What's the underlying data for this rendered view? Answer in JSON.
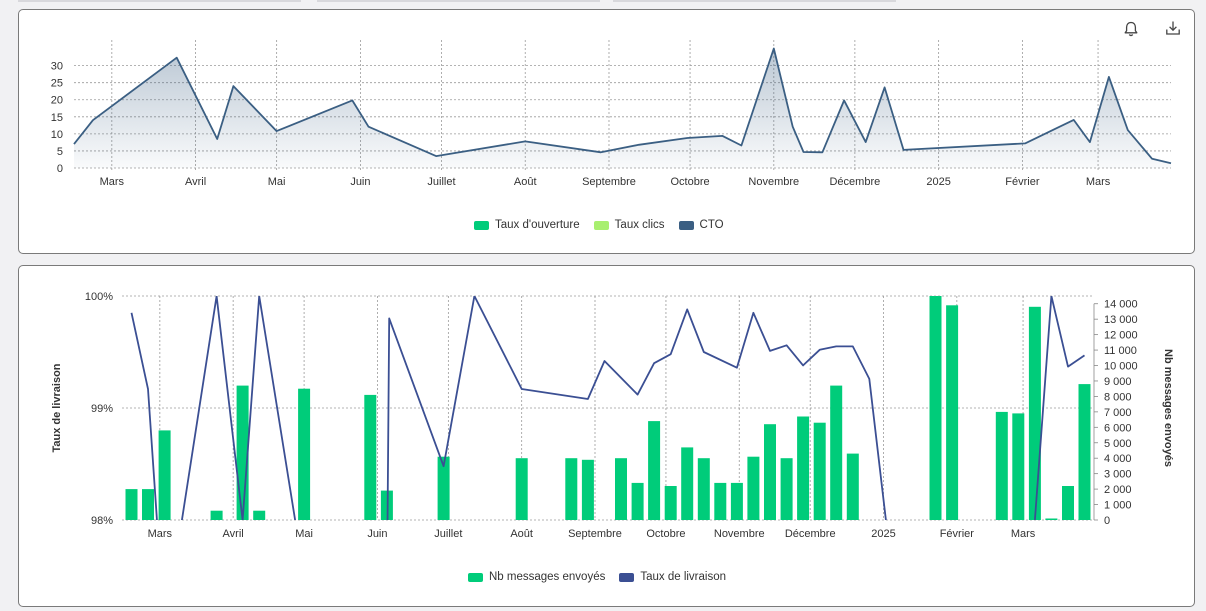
{
  "colors": {
    "open_rate": "#00cc7a",
    "click_rate": "#a8ef6f",
    "cto": "#3b5f83",
    "sent": "#00cc7a",
    "delivery": "#3b4f93",
    "grid": "#9a9a9a"
  },
  "icons": {
    "bell": "bell-icon",
    "download": "download-icon"
  },
  "chart_data": [
    {
      "type": "area",
      "title": "",
      "xlabel": "",
      "ylabel": "",
      "x_tick_labels": [
        "Mars",
        "Avril",
        "Mai",
        "Juin",
        "Juillet",
        "Août",
        "Septembre",
        "Octobre",
        "Novembre",
        "Décembre",
        "2025",
        "Février",
        "Mars"
      ],
      "y_tick_labels": [
        "0",
        "5",
        "10",
        "15",
        "20",
        "25",
        "30"
      ],
      "ylim": [
        0,
        37.5
      ],
      "grid": true,
      "legend_position": "bottom",
      "legend": [
        "Taux d'ouverture",
        "Taux clics",
        "CTO"
      ],
      "series": [
        {
          "name": "CTO",
          "points": [
            [
              "2024-02-16",
              7
            ],
            [
              "2024-02-23",
              14
            ],
            [
              "2024-03-25",
              32.3
            ],
            [
              "2024-04-09",
              8.5
            ],
            [
              "2024-04-15",
              24
            ],
            [
              "2024-05-01",
              10.8
            ],
            [
              "2024-05-29",
              19.8
            ],
            [
              "2024-06-04",
              12.1
            ],
            [
              "2024-06-29",
              3.5
            ],
            [
              "2024-08-01",
              7.8
            ],
            [
              "2024-08-29",
              4.6
            ],
            [
              "2024-09-12",
              6.8
            ],
            [
              "2024-09-30",
              8.8
            ],
            [
              "2024-10-13",
              9.4
            ],
            [
              "2024-10-20",
              6.6
            ],
            [
              "2024-11-01",
              35
            ],
            [
              "2024-11-08",
              12.1
            ],
            [
              "2024-11-12",
              4.7
            ],
            [
              "2024-11-19",
              4.6
            ],
            [
              "2024-11-27",
              19.8
            ],
            [
              "2024-12-05",
              7.6
            ],
            [
              "2024-12-12",
              23.6
            ],
            [
              "2024-12-19",
              5.3
            ],
            [
              "2025-02-02",
              7.2
            ],
            [
              "2025-02-20",
              14.1
            ],
            [
              "2025-02-26",
              7.6
            ],
            [
              "2025-03-05",
              26.7
            ],
            [
              "2025-03-12",
              11.1
            ],
            [
              "2025-03-21",
              2.7
            ],
            [
              "2025-03-28",
              1.4
            ]
          ]
        }
      ]
    },
    {
      "type": "bar",
      "title": "",
      "xlabel": "",
      "ylabel_left": "Taux de livraison",
      "ylabel_right": "Nb messages envoyés",
      "x_tick_labels": [
        "Mars",
        "Avril",
        "Mai",
        "Juin",
        "Juillet",
        "Août",
        "Septembre",
        "Octobre",
        "Novembre",
        "Décembre",
        "2025",
        "Février",
        "Mars"
      ],
      "y_left_tick_labels": [
        "98%",
        "99%",
        "100%"
      ],
      "y_left_lim": [
        98,
        100
      ],
      "y_right_tick_labels": [
        "0",
        "1 000",
        "2 000",
        "3 000",
        "4 000",
        "5 000",
        "6 000",
        "7 000",
        "8 000",
        "9 000",
        "10 000",
        "11 000",
        "12 000",
        "13 000",
        "14 000"
      ],
      "y_right_lim": [
        0,
        14500
      ],
      "grid": true,
      "legend_position": "bottom",
      "legend": [
        "Nb messages envoyés",
        "Taux de livraison"
      ],
      "series": [
        {
          "name": "Nb messages envoyés",
          "points": [
            [
              "2024-02-18",
              2000
            ],
            [
              "2024-02-25",
              2000
            ],
            [
              "2024-03-03",
              5800
            ],
            [
              "2024-03-25",
              600
            ],
            [
              "2024-04-05",
              8700
            ],
            [
              "2024-04-12",
              600
            ],
            [
              "2024-05-01",
              8500
            ],
            [
              "2024-05-29",
              8100
            ],
            [
              "2024-06-05",
              1900
            ],
            [
              "2024-06-29",
              4100
            ],
            [
              "2024-08-01",
              4000
            ],
            [
              "2024-08-22",
              4000
            ],
            [
              "2024-08-29",
              3900
            ],
            [
              "2024-09-12",
              4000
            ],
            [
              "2024-09-19",
              2400
            ],
            [
              "2024-09-26",
              6400
            ],
            [
              "2024-10-03",
              2200
            ],
            [
              "2024-10-10",
              4700
            ],
            [
              "2024-10-17",
              4000
            ],
            [
              "2024-10-24",
              2400
            ],
            [
              "2024-10-31",
              2400
            ],
            [
              "2024-11-07",
              4100
            ],
            [
              "2024-11-14",
              6200
            ],
            [
              "2024-11-21",
              4000
            ],
            [
              "2024-11-28",
              6700
            ],
            [
              "2024-12-05",
              6300
            ],
            [
              "2024-12-12",
              8700
            ],
            [
              "2024-12-19",
              4300
            ],
            [
              "2025-01-23",
              14500
            ],
            [
              "2025-01-30",
              13900
            ],
            [
              "2025-02-20",
              7000
            ],
            [
              "2025-02-27",
              6900
            ],
            [
              "2025-03-06",
              13800
            ],
            [
              "2025-03-13",
              100
            ],
            [
              "2025-03-20",
              2200
            ],
            [
              "2025-03-27",
              8800
            ]
          ]
        },
        {
          "name": "Taux de livraison",
          "points": [
            [
              "2024-02-18",
              99.85
            ],
            [
              "2024-02-25",
              99.17
            ],
            [
              "2024-03-03",
              97.0
            ],
            [
              "2024-03-25",
              100.0
            ],
            [
              "2024-04-05",
              98.0
            ],
            [
              "2024-04-12",
              100.0
            ],
            [
              "2024-05-01",
              97.5
            ],
            [
              "2024-06-05",
              97.3
            ],
            [
              "2024-06-06",
              99.8
            ],
            [
              "2024-06-29",
              98.48
            ],
            [
              "2024-07-12",
              100.0
            ],
            [
              "2024-08-01",
              99.17
            ],
            [
              "2024-08-29",
              99.08
            ],
            [
              "2024-09-05",
              99.42
            ],
            [
              "2024-09-19",
              99.12
            ],
            [
              "2024-09-26",
              99.4
            ],
            [
              "2024-10-03",
              99.48
            ],
            [
              "2024-10-10",
              99.88
            ],
            [
              "2024-10-17",
              99.5
            ],
            [
              "2024-10-31",
              99.36
            ],
            [
              "2024-11-07",
              99.85
            ],
            [
              "2024-11-14",
              99.51
            ],
            [
              "2024-11-21",
              99.56
            ],
            [
              "2024-11-28",
              99.38
            ],
            [
              "2024-12-05",
              99.52
            ],
            [
              "2024-12-12",
              99.55
            ],
            [
              "2024-12-19",
              99.55
            ],
            [
              "2024-12-26",
              99.26
            ],
            [
              "2025-01-02",
              98.0
            ],
            [
              "2025-01-09",
              97.0
            ],
            [
              "2025-02-27",
              97.0
            ],
            [
              "2025-03-06",
              98.0
            ],
            [
              "2025-03-13",
              100.0
            ],
            [
              "2025-03-20",
              99.37
            ],
            [
              "2025-03-27",
              99.47
            ]
          ]
        }
      ]
    }
  ]
}
